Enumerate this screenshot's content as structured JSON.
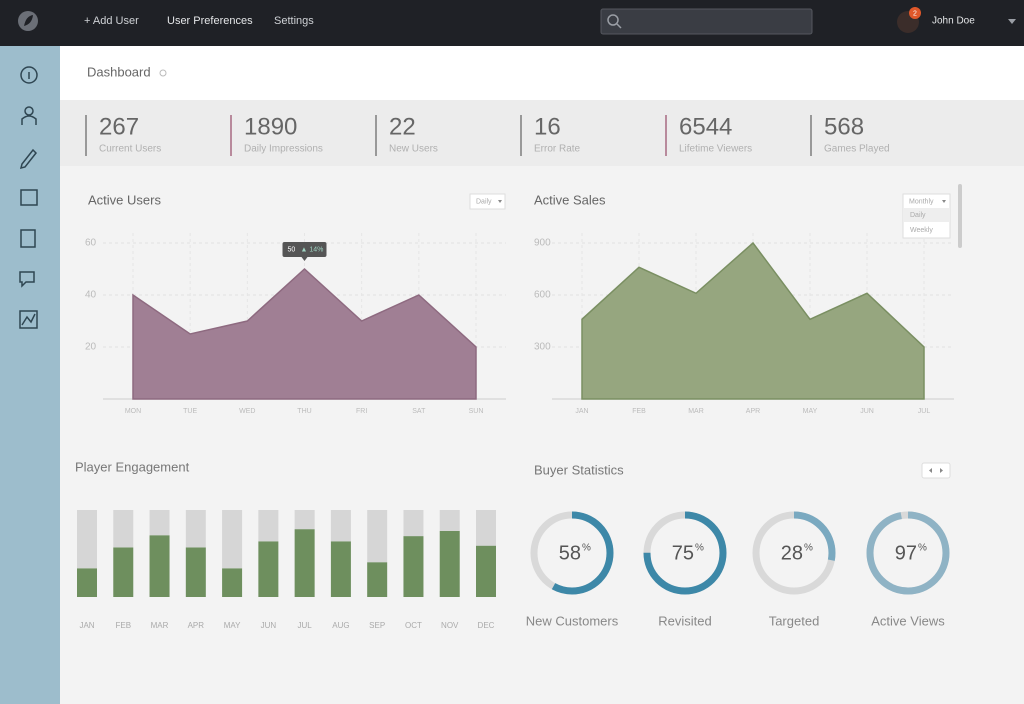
{
  "nav": {
    "items": [
      "+ Add User",
      "User Preferences",
      "Settings"
    ],
    "user": "John Doe",
    "notifications": 2
  },
  "page_title": "Dashboard",
  "stats": [
    {
      "value": 267,
      "label": "Current Users"
    },
    {
      "value": 1890,
      "label": "Daily Impressions"
    },
    {
      "value": 22,
      "label": "New Users"
    },
    {
      "value": 16,
      "label": "Error Rate"
    },
    {
      "value": 6544,
      "label": "Lifetime Viewers"
    },
    {
      "value": 568,
      "label": "Games Played"
    }
  ],
  "active_users": {
    "type": "area",
    "title": "Active Users",
    "filter": "Daily",
    "categories": [
      "MON",
      "TUE",
      "WED",
      "THU",
      "FRI",
      "SAT",
      "SUN"
    ],
    "values": [
      40,
      25,
      30,
      50,
      30,
      40,
      20
    ],
    "color": "#a07f94",
    "ylim": [
      0,
      60
    ],
    "yticks": [
      20,
      40,
      60
    ],
    "tooltip": {
      "change": "▲ 14%"
    }
  },
  "active_sales": {
    "type": "area",
    "title": "Active Sales",
    "filter": "Monthly",
    "filter_options": [
      "Daily",
      "Weekly"
    ],
    "categories": [
      "JAN",
      "FEB",
      "MAR",
      "APR",
      "MAY",
      "JUN",
      "JUL"
    ],
    "values": [
      460,
      760,
      610,
      900,
      460,
      610,
      300
    ],
    "color": "#96a67f",
    "ylim": [
      0,
      900
    ],
    "yticks": [
      300,
      600,
      900
    ]
  },
  "player_engagement": {
    "type": "stacked_bar",
    "title": "Player Engagement",
    "categories": [
      "JAN",
      "FEB",
      "MAR",
      "APR",
      "MAY",
      "JUN",
      "JUL",
      "AUG",
      "SEP",
      "OCT",
      "NOV",
      "DEC"
    ],
    "series": [
      {
        "color": "#6e8f5e",
        "values": [
          33,
          57,
          71,
          57,
          33,
          64,
          78,
          64,
          40,
          70,
          76,
          59
        ]
      },
      {
        "color": "#d6d6d6",
        "values": [
          67,
          43,
          29,
          43,
          67,
          36,
          22,
          36,
          60,
          30,
          24,
          41
        ]
      }
    ],
    "ylim": [
      0,
      100
    ]
  },
  "buyer_statistics": {
    "type": "donut",
    "title": "Buyer Statistics",
    "unit": "%",
    "categories": [
      "New Customers",
      "Revisited",
      "Targeted",
      "Active Views"
    ],
    "values": [
      58,
      75,
      28,
      97
    ],
    "colors": [
      "#3d88a8",
      "#3d88a8",
      "#7aa9c0",
      "#8fb3c5"
    ],
    "ylim": [
      0,
      100
    ]
  }
}
